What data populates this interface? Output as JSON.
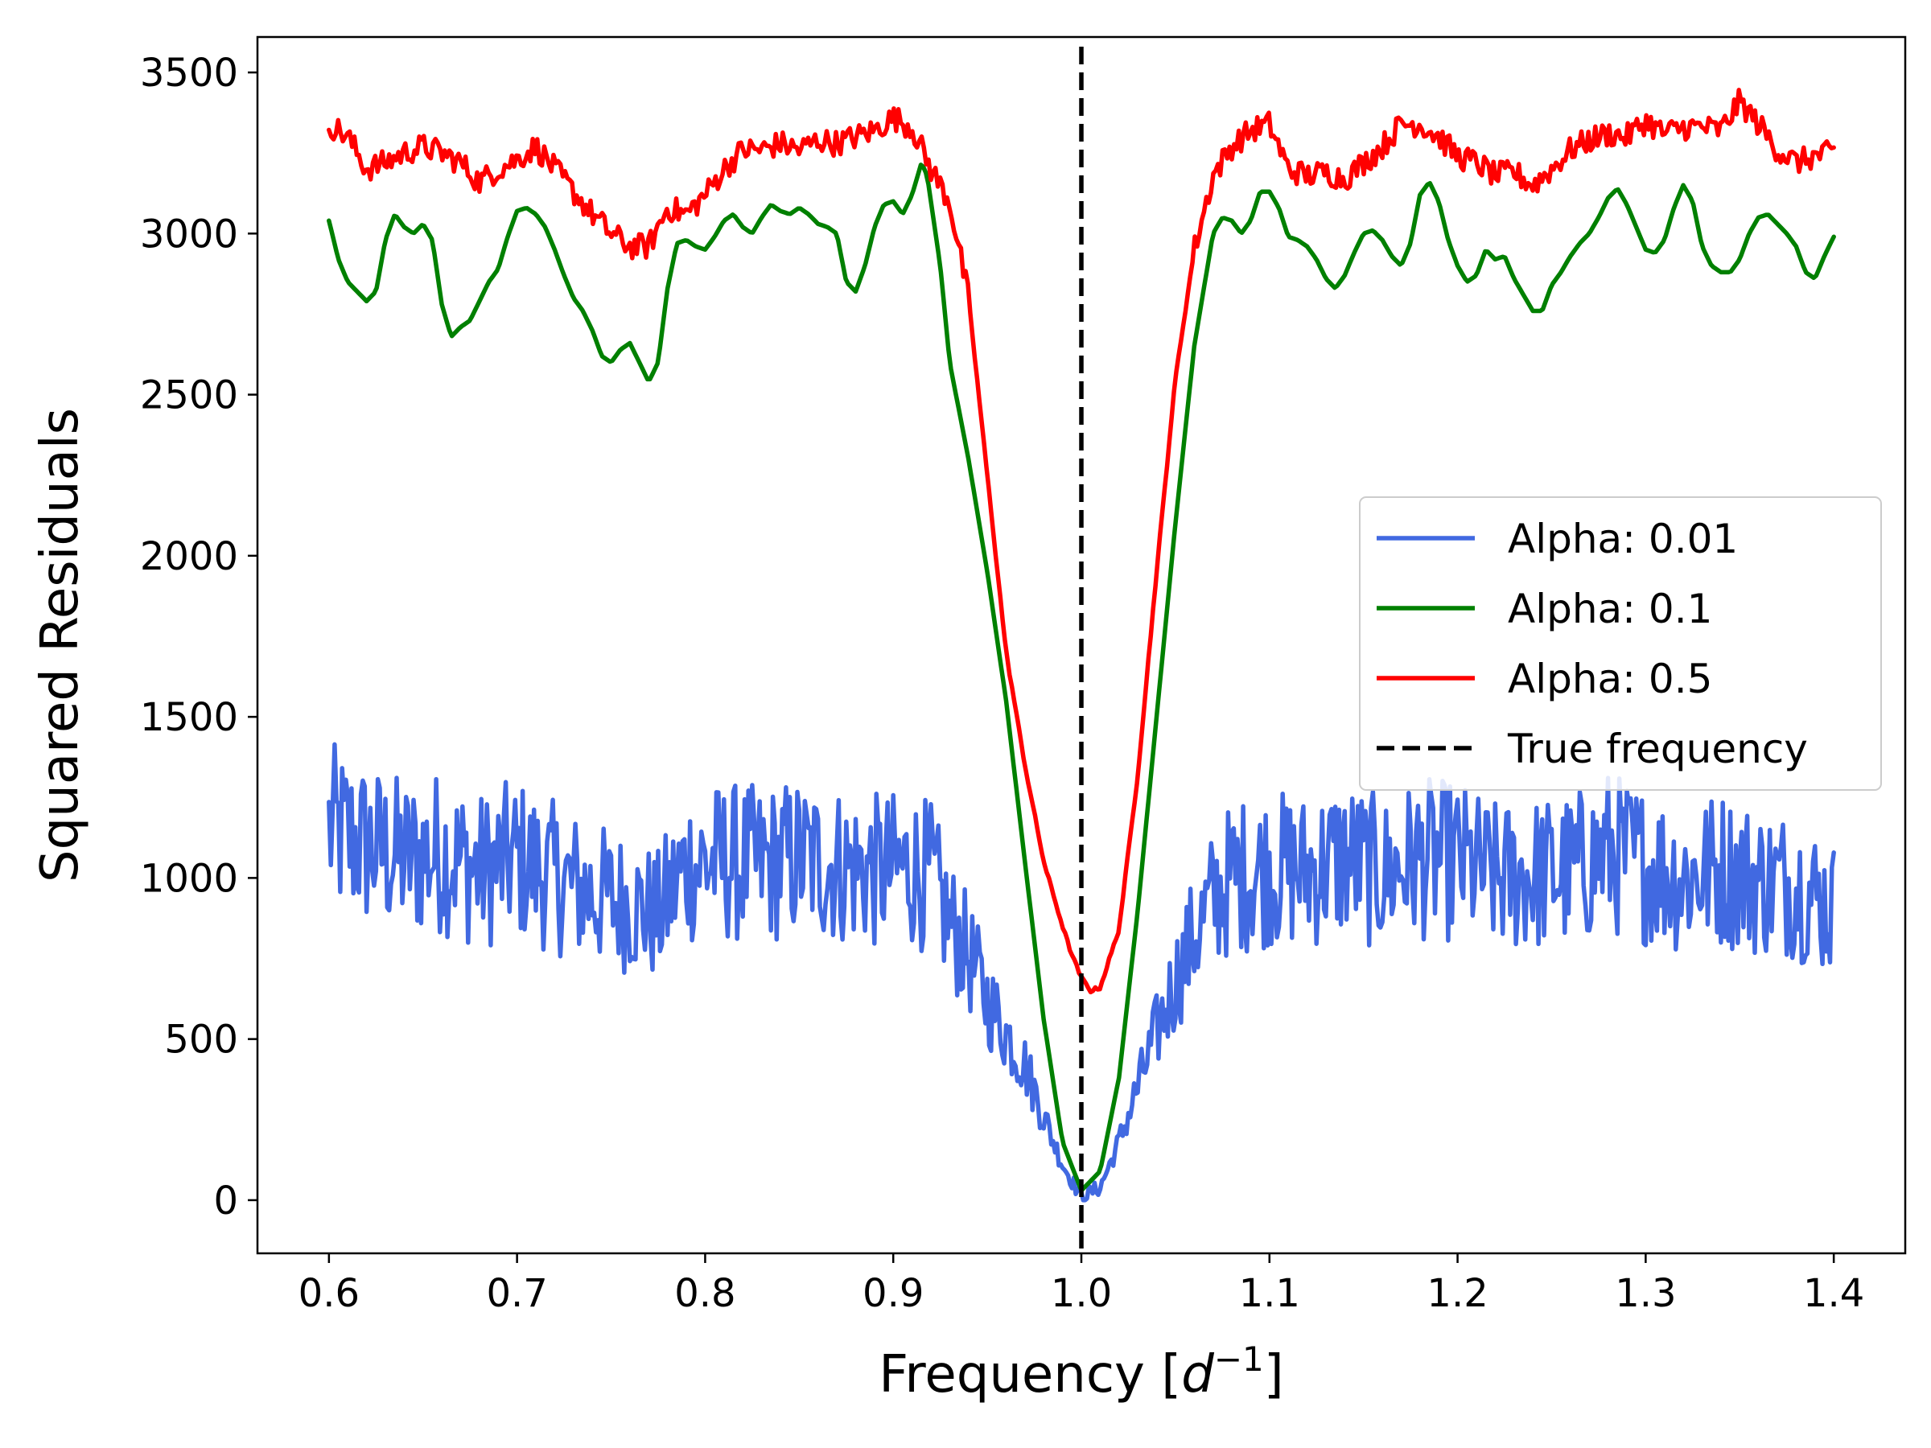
{
  "chart_data": {
    "type": "line",
    "title": "",
    "xlabel": "Frequency",
    "xlabel_unit_base": "d",
    "xlabel_unit_exp": "−1",
    "ylabel": "Squared Residuals",
    "xlim": [
      0.562,
      1.438
    ],
    "ylim": [
      -165,
      3610
    ],
    "x_ticks": [
      0.6,
      0.7,
      0.8,
      0.9,
      1.0,
      1.1,
      1.2,
      1.3,
      1.4
    ],
    "x_tick_labels": [
      "0.6",
      "0.7",
      "0.8",
      "0.9",
      "1.0",
      "1.1",
      "1.2",
      "1.3",
      "1.4"
    ],
    "y_ticks": [
      0,
      500,
      1000,
      1500,
      2000,
      2500,
      3000,
      3500
    ],
    "y_tick_labels": [
      "0",
      "500",
      "1000",
      "1500",
      "2000",
      "2500",
      "3000",
      "3500"
    ],
    "grid": false,
    "legend_position": "center-right",
    "reference_line": {
      "name": "True frequency",
      "x": 1.0,
      "color": "#000000",
      "style": "dashed"
    },
    "series": [
      {
        "name": "Alpha: 0.01",
        "color": "#4169e1",
        "style": "noisy",
        "x": [
          0.6,
          0.62,
          0.64,
          0.66,
          0.68,
          0.7,
          0.72,
          0.74,
          0.76,
          0.775,
          0.79,
          0.81,
          0.83,
          0.85,
          0.87,
          0.89,
          0.91,
          0.92,
          0.93,
          0.94,
          0.95,
          0.96,
          0.97,
          0.98,
          0.99,
          1.0,
          1.01,
          1.02,
          1.03,
          1.04,
          1.05,
          1.06,
          1.07,
          1.08,
          1.1,
          1.12,
          1.14,
          1.16,
          1.18,
          1.2,
          1.22,
          1.24,
          1.26,
          1.28,
          1.3,
          1.32,
          1.34,
          1.36,
          1.38,
          1.4
        ],
        "values": [
          1150,
          1100,
          1060,
          1080,
          1020,
          1060,
          1000,
          950,
          920,
          880,
          1040,
          1050,
          1040,
          1060,
          1040,
          1020,
          1030,
          1000,
          860,
          760,
          620,
          520,
          420,
          260,
          110,
          10,
          40,
          180,
          350,
          520,
          680,
          820,
          930,
          1000,
          1030,
          1020,
          1060,
          1010,
          1060,
          1050,
          1000,
          1010,
          1020,
          1080,
          1040,
          1000,
          1030,
          990,
          980,
          900
        ]
      },
      {
        "name": "Alpha: 0.1",
        "color": "#008000",
        "style": "smooth",
        "x": [
          0.6,
          0.605,
          0.61,
          0.615,
          0.62,
          0.625,
          0.63,
          0.635,
          0.64,
          0.645,
          0.65,
          0.655,
          0.66,
          0.665,
          0.67,
          0.675,
          0.68,
          0.685,
          0.69,
          0.695,
          0.7,
          0.705,
          0.71,
          0.715,
          0.72,
          0.725,
          0.73,
          0.735,
          0.74,
          0.745,
          0.75,
          0.755,
          0.76,
          0.765,
          0.77,
          0.775,
          0.78,
          0.785,
          0.79,
          0.795,
          0.8,
          0.805,
          0.81,
          0.815,
          0.82,
          0.825,
          0.83,
          0.835,
          0.84,
          0.845,
          0.85,
          0.855,
          0.86,
          0.865,
          0.87,
          0.875,
          0.88,
          0.885,
          0.89,
          0.895,
          0.9,
          0.905,
          0.91,
          0.915,
          0.918,
          0.925,
          0.93,
          0.94,
          0.95,
          0.96,
          0.97,
          0.98,
          0.99,
          1.0,
          1.01,
          1.02,
          1.03,
          1.04,
          1.05,
          1.06,
          1.07,
          1.075,
          1.08,
          1.085,
          1.09,
          1.095,
          1.1,
          1.105,
          1.11,
          1.115,
          1.12,
          1.125,
          1.13,
          1.135,
          1.14,
          1.145,
          1.15,
          1.155,
          1.16,
          1.165,
          1.17,
          1.175,
          1.18,
          1.185,
          1.19,
          1.195,
          1.2,
          1.205,
          1.21,
          1.215,
          1.22,
          1.225,
          1.23,
          1.235,
          1.24,
          1.245,
          1.25,
          1.255,
          1.26,
          1.265,
          1.27,
          1.275,
          1.28,
          1.285,
          1.29,
          1.295,
          1.3,
          1.305,
          1.31,
          1.315,
          1.32,
          1.325,
          1.33,
          1.335,
          1.34,
          1.345,
          1.35,
          1.355,
          1.36,
          1.365,
          1.37,
          1.375,
          1.38,
          1.385,
          1.39,
          1.395,
          1.4
        ],
        "values": [
          3040,
          2920,
          2850,
          2820,
          2790,
          2820,
          2980,
          3060,
          3020,
          3000,
          3030,
          2980,
          2780,
          2680,
          2710,
          2730,
          2790,
          2850,
          2890,
          2990,
          3070,
          3080,
          3060,
          3020,
          2950,
          2870,
          2800,
          2760,
          2700,
          2620,
          2600,
          2640,
          2660,
          2600,
          2540,
          2600,
          2830,
          2970,
          2980,
          2960,
          2950,
          2990,
          3040,
          3060,
          3020,
          3000,
          3050,
          3090,
          3070,
          3060,
          3080,
          3060,
          3030,
          3020,
          3000,
          2850,
          2820,
          2900,
          3020,
          3090,
          3100,
          3060,
          3120,
          3220,
          3180,
          2900,
          2600,
          2300,
          1950,
          1550,
          1050,
          560,
          180,
          30,
          90,
          380,
          900,
          1500,
          2100,
          2650,
          3000,
          3050,
          3040,
          3000,
          3040,
          3130,
          3130,
          3080,
          2990,
          2980,
          2960,
          2920,
          2860,
          2830,
          2870,
          2940,
          3000,
          3010,
          2980,
          2930,
          2900,
          2970,
          3120,
          3160,
          3100,
          2980,
          2900,
          2850,
          2870,
          2950,
          2920,
          2930,
          2860,
          2810,
          2760,
          2760,
          2840,
          2880,
          2930,
          2970,
          3000,
          3050,
          3110,
          3140,
          3090,
          3020,
          2950,
          2940,
          2980,
          3080,
          3150,
          3100,
          2960,
          2900,
          2880,
          2880,
          2920,
          3000,
          3050,
          3060,
          3030,
          3000,
          2960,
          2880,
          2860,
          2930,
          2990
        ]
      },
      {
        "name": "Alpha: 0.5",
        "color": "#ff0000",
        "style": "jagged",
        "x": [
          0.6,
          0.61,
          0.62,
          0.63,
          0.64,
          0.65,
          0.66,
          0.67,
          0.68,
          0.69,
          0.7,
          0.71,
          0.72,
          0.73,
          0.74,
          0.75,
          0.76,
          0.77,
          0.78,
          0.79,
          0.8,
          0.81,
          0.82,
          0.83,
          0.84,
          0.85,
          0.86,
          0.87,
          0.88,
          0.89,
          0.9,
          0.91,
          0.92,
          0.93,
          0.94,
          0.95,
          0.96,
          0.97,
          0.98,
          0.99,
          0.995,
          1.0,
          1.005,
          1.01,
          1.02,
          1.03,
          1.04,
          1.05,
          1.06,
          1.07,
          1.08,
          1.09,
          1.1,
          1.11,
          1.12,
          1.13,
          1.14,
          1.15,
          1.16,
          1.17,
          1.18,
          1.19,
          1.2,
          1.21,
          1.22,
          1.23,
          1.24,
          1.25,
          1.26,
          1.27,
          1.28,
          1.29,
          1.3,
          1.31,
          1.32,
          1.33,
          1.34,
          1.35,
          1.36,
          1.37,
          1.38,
          1.39,
          1.4
        ],
        "values": [
          3340,
          3300,
          3200,
          3220,
          3250,
          3270,
          3250,
          3220,
          3160,
          3200,
          3230,
          3270,
          3200,
          3130,
          3060,
          3000,
          2960,
          2960,
          3080,
          3060,
          3120,
          3200,
          3260,
          3260,
          3280,
          3260,
          3290,
          3280,
          3300,
          3320,
          3360,
          3330,
          3200,
          3100,
          2800,
          2250,
          1700,
          1350,
          1050,
          850,
          760,
          690,
          650,
          660,
          840,
          1320,
          1950,
          2550,
          2950,
          3180,
          3270,
          3320,
          3340,
          3200,
          3180,
          3190,
          3170,
          3220,
          3270,
          3340,
          3340,
          3300,
          3240,
          3220,
          3180,
          3190,
          3150,
          3200,
          3260,
          3290,
          3310,
          3300,
          3350,
          3310,
          3330,
          3330,
          3320,
          3410,
          3340,
          3260,
          3220,
          3240,
          3250
        ]
      }
    ]
  }
}
